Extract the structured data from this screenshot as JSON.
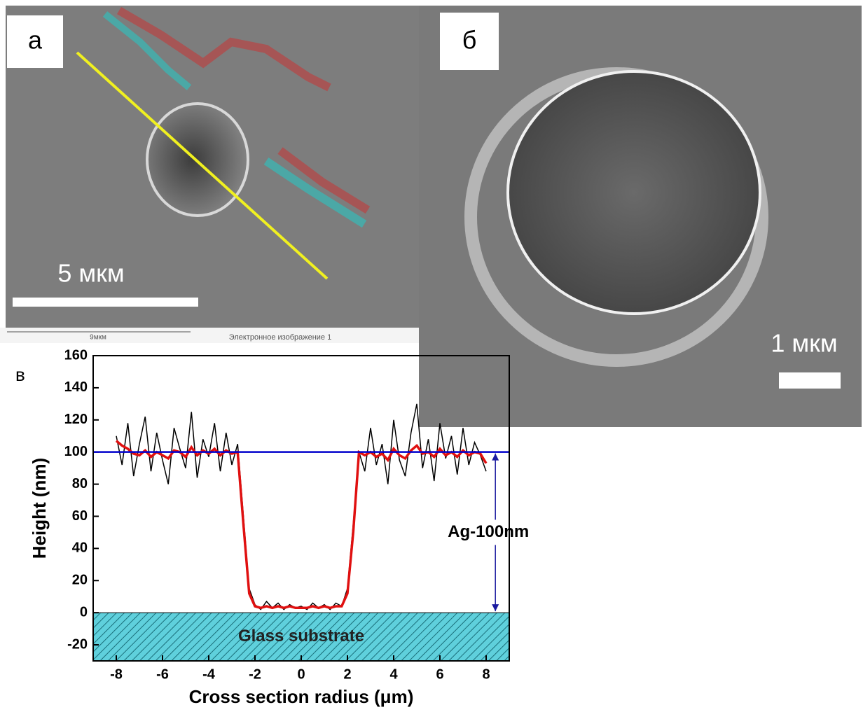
{
  "panel_a": {
    "label": "а",
    "scale_bar": "5 мкм",
    "footer_scale": "9мкм",
    "footer_caption": "Электронное изображение 1"
  },
  "panel_b": {
    "label": "б",
    "scale_bar": "1 мкм"
  },
  "panel_c": {
    "label": "в"
  },
  "chart_data": {
    "type": "line",
    "x_label": "Cross section radius (μm)",
    "y_label": "Height (nm)",
    "x": [
      -8,
      -7.75,
      -7.5,
      -7.25,
      -7,
      -6.75,
      -6.5,
      -6.25,
      -6,
      -5.75,
      -5.5,
      -5.25,
      -5,
      -4.75,
      -4.5,
      -4.25,
      -4,
      -3.75,
      -3.5,
      -3.25,
      -3,
      -2.75,
      -2.5,
      -2.25,
      -2,
      -1.75,
      -1.5,
      -1.25,
      -1,
      -0.75,
      -0.5,
      -0.25,
      0,
      0.25,
      0.5,
      0.75,
      1,
      1.25,
      1.5,
      1.75,
      2,
      2.25,
      2.5,
      2.75,
      3,
      3.25,
      3.5,
      3.75,
      4,
      4.25,
      4.5,
      4.75,
      5,
      5.25,
      5.5,
      5.75,
      6,
      6.25,
      6.5,
      6.75,
      7,
      7.25,
      7.5,
      7.75,
      8
    ],
    "series": [
      {
        "color": "#000000",
        "values": [
          110,
          92,
          118,
          85,
          105,
          122,
          88,
          112,
          95,
          80,
          115,
          102,
          90,
          125,
          84,
          108,
          97,
          118,
          88,
          112,
          92,
          105,
          60,
          15,
          5,
          2,
          7,
          3,
          6,
          2,
          5,
          3,
          4,
          2,
          6,
          3,
          5,
          2,
          6,
          4,
          15,
          55,
          100,
          88,
          115,
          92,
          105,
          80,
          120,
          95,
          85,
          112,
          130,
          90,
          108,
          82,
          118,
          96,
          110,
          86,
          115,
          92,
          106,
          98,
          88
        ]
      },
      {
        "color": "#e01010",
        "values": [
          107,
          104,
          102,
          99,
          98,
          101,
          97,
          100,
          98,
          96,
          101,
          100,
          97,
          103,
          98,
          101,
          99,
          102,
          98,
          101,
          99,
          100,
          55,
          12,
          4,
          3,
          4,
          3,
          4,
          3,
          4,
          3,
          3,
          3,
          4,
          3,
          4,
          3,
          4,
          4,
          12,
          50,
          100,
          98,
          100,
          97,
          99,
          95,
          102,
          98,
          96,
          101,
          104,
          99,
          100,
          97,
          102,
          98,
          100,
          97,
          101,
          98,
          100,
          99,
          93
        ]
      }
    ],
    "xlim": [
      -9,
      9
    ],
    "ylim": [
      -30,
      160
    ],
    "xticks": [
      -8,
      -6,
      -4,
      -2,
      0,
      2,
      4,
      6,
      8
    ],
    "yticks": [
      -20,
      0,
      20,
      40,
      60,
      80,
      100,
      120,
      140,
      160
    ],
    "reference_line": {
      "value": 100,
      "color": "#0000cc"
    },
    "substrate": {
      "label": "Glass substrate",
      "top": 0,
      "color": "#5fd0dc"
    },
    "annotation": {
      "text": "Ag-100nm",
      "x": 8.4,
      "from": 100,
      "to": 0
    }
  }
}
